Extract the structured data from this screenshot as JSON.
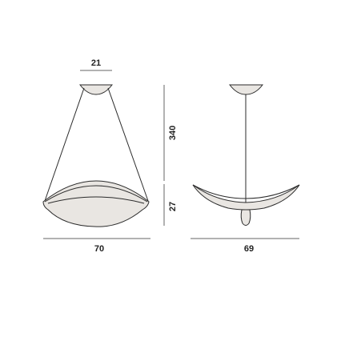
{
  "dimensions": {
    "canopy_width": "21",
    "overall_height": "340",
    "shade_height": "27",
    "front_width": "70",
    "side_width": "69"
  },
  "colors": {
    "line": "#2b2b2b",
    "dimension_line": "#666666",
    "shade_fill": "#e9e6e2"
  }
}
